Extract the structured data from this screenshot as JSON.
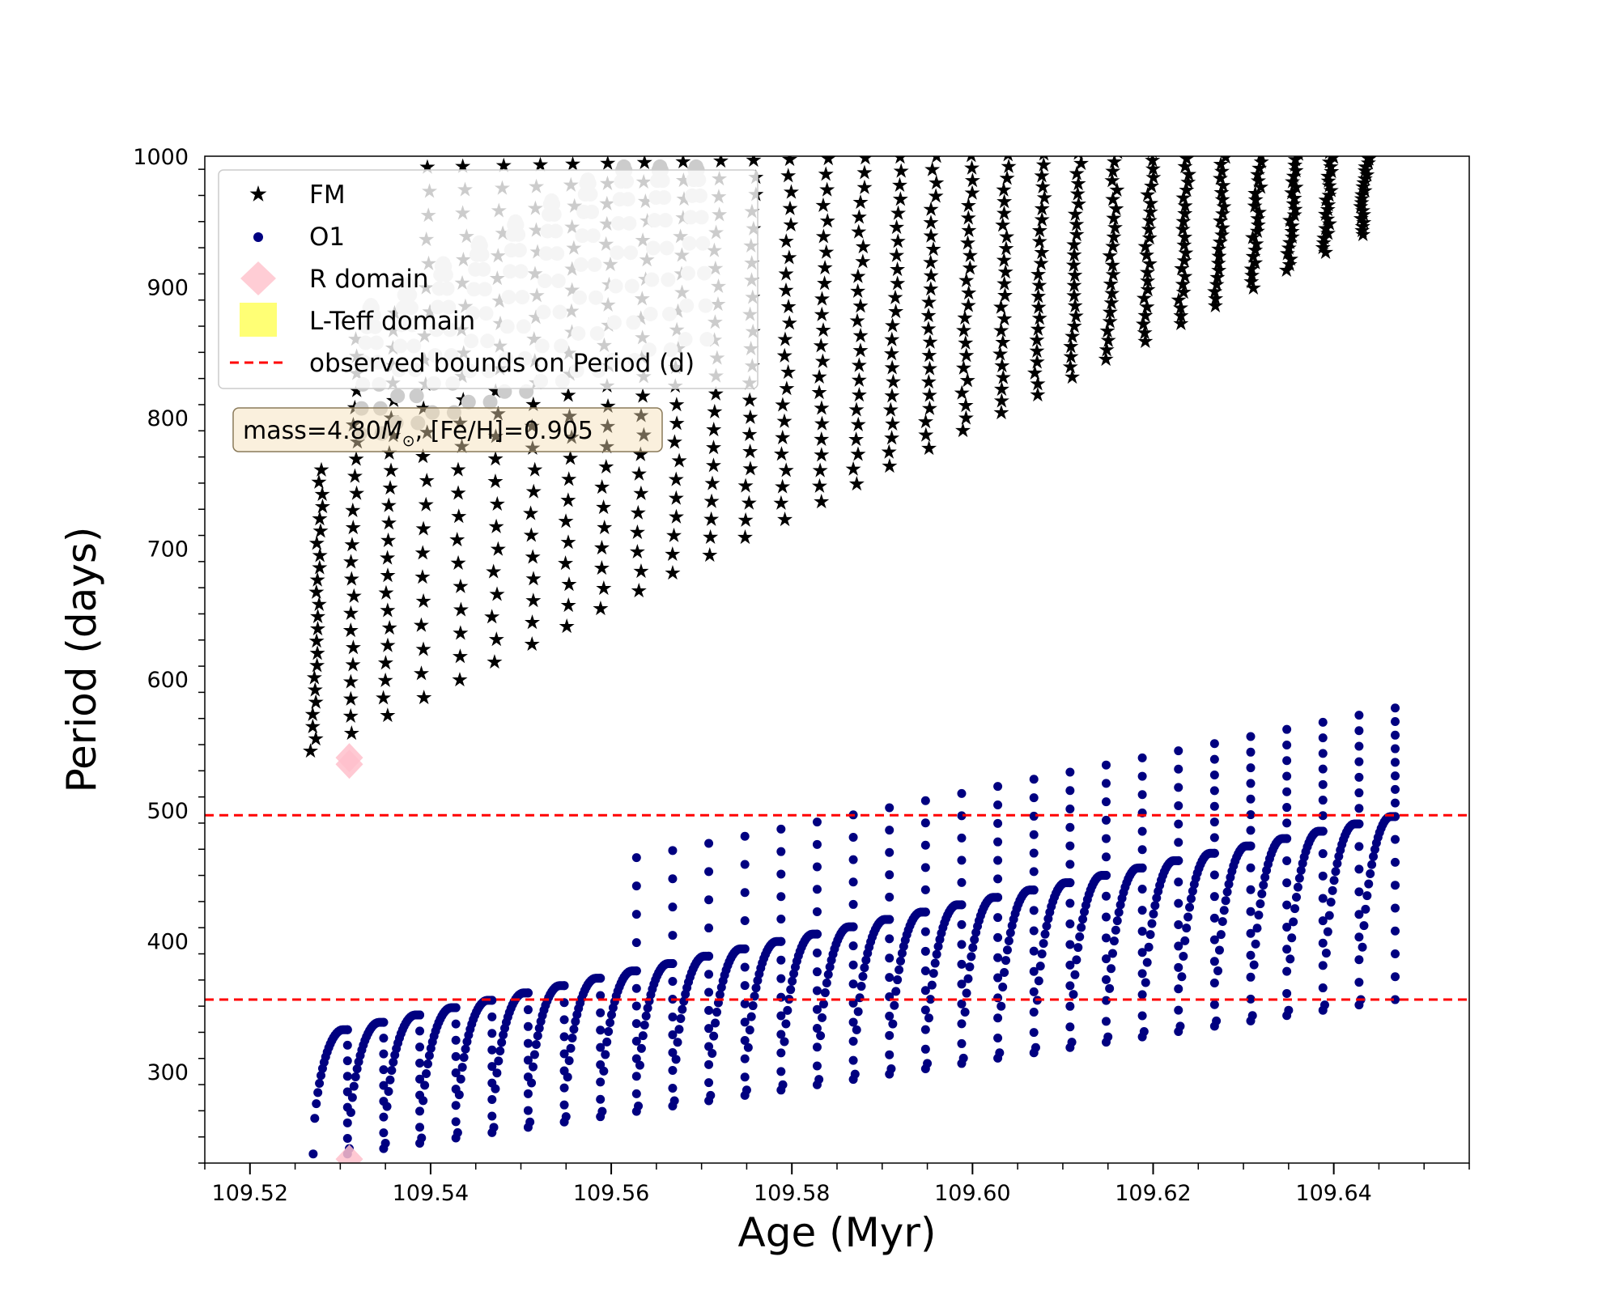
{
  "chart_data": {
    "type": "scatter",
    "title": "",
    "xlabel": "Age (Myr)",
    "ylabel": "Period (days)",
    "xlim": [
      109.515,
      109.655
    ],
    "ylim": [
      230,
      1000
    ],
    "xticks": [
      109.52,
      109.54,
      109.56,
      109.58,
      109.6,
      109.62,
      109.64
    ],
    "yticks": [
      300,
      400,
      500,
      600,
      700,
      800,
      900,
      1000
    ],
    "grid": false,
    "legend_position": "upper-left",
    "annotation": {
      "prefix": "mass=4.80",
      "symbol": "M",
      "subscript": "⊙",
      "suffix": ", [Fe/H]=0.905"
    },
    "cycles": {
      "start_age": 109.527,
      "spacing": 0.004,
      "count": 30,
      "fm_min_start": 545,
      "fm_min_end": 940,
      "o1_min_start": 237,
      "o1_min_end": 355,
      "o1_peak_start": 332,
      "o1_peak_end": 495,
      "o1_spike_start": 420,
      "o1_spike_end": 578
    },
    "series": [
      {
        "name": "FM",
        "marker": "star",
        "color": "#000000",
        "highlight_color": "#cccccc"
      },
      {
        "name": "O1",
        "marker": "circle",
        "color": "#000080"
      },
      {
        "name": "R domain",
        "marker": "diamond",
        "color": "#ffc0cb",
        "points": [
          {
            "x": 109.531,
            "y": 540
          },
          {
            "x": 109.531,
            "y": 535
          },
          {
            "x": 109.531,
            "y": 233
          }
        ]
      },
      {
        "name": "L-Teff domain",
        "marker": "square",
        "color": "#ffff66",
        "points": []
      }
    ],
    "reference_lines": [
      {
        "name": "observed bounds on Period (d)",
        "y": 496,
        "color": "#ff0000",
        "style": "dashed"
      },
      {
        "name": "observed bounds on Period (d)",
        "y": 355,
        "color": "#ff0000",
        "style": "dashed"
      }
    ]
  }
}
